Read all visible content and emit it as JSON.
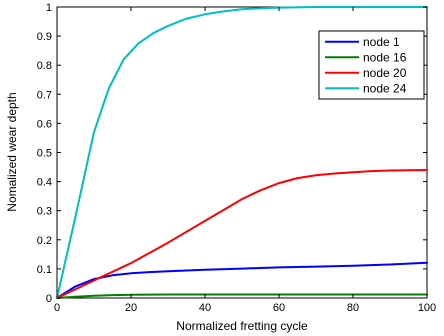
{
  "chart_data": {
    "type": "line",
    "title": "",
    "xlabel": "Normalized fretting cycle",
    "ylabel": "Nomalized wear depth",
    "xlim": [
      0,
      100
    ],
    "ylim": [
      0,
      1
    ],
    "x_ticks": [
      0,
      20,
      40,
      60,
      80,
      100
    ],
    "y_ticks": [
      0,
      0.1,
      0.2,
      0.3,
      0.4,
      0.5,
      0.6,
      0.7,
      0.8,
      0.9,
      1
    ],
    "x_tick_labels": [
      "0",
      "20",
      "40",
      "60",
      "80",
      "100"
    ],
    "y_tick_labels": [
      "0",
      "0.1",
      "0.2",
      "0.3",
      "0.4",
      "0.5",
      "0.6",
      "0.7",
      "0.8",
      "0.9",
      "1"
    ],
    "grid": false,
    "legend_position": "top-right",
    "series": [
      {
        "name": "node 1",
        "color": "#0000ff",
        "x": [
          0,
          5,
          10,
          15,
          20,
          25,
          30,
          40,
          50,
          60,
          70,
          80,
          90,
          100
        ],
        "y": [
          0,
          0.04,
          0.065,
          0.078,
          0.085,
          0.089,
          0.092,
          0.097,
          0.101,
          0.105,
          0.108,
          0.111,
          0.115,
          0.121
        ]
      },
      {
        "name": "node 16",
        "color": "#008000",
        "x": [
          0,
          5,
          10,
          15,
          20,
          30,
          40,
          60,
          80,
          100
        ],
        "y": [
          0,
          0.004,
          0.008,
          0.01,
          0.011,
          0.012,
          0.012,
          0.012,
          0.012,
          0.012
        ]
      },
      {
        "name": "node 20",
        "color": "#ff0000",
        "x": [
          0,
          10,
          20,
          30,
          40,
          50,
          55,
          60,
          65,
          70,
          75,
          80,
          85,
          90,
          95,
          100
        ],
        "y": [
          0,
          0.06,
          0.12,
          0.19,
          0.265,
          0.34,
          0.37,
          0.395,
          0.412,
          0.422,
          0.428,
          0.432,
          0.436,
          0.438,
          0.439,
          0.44
        ]
      },
      {
        "name": "node 24",
        "color": "#00bfbf",
        "x": [
          0,
          5,
          10,
          14,
          18,
          22,
          26,
          30,
          35,
          40,
          45,
          50,
          55,
          60,
          70,
          80,
          90,
          100
        ],
        "y": [
          0,
          0.28,
          0.57,
          0.72,
          0.82,
          0.875,
          0.91,
          0.935,
          0.96,
          0.975,
          0.985,
          0.992,
          0.996,
          0.998,
          1,
          1,
          1,
          1
        ]
      }
    ]
  }
}
